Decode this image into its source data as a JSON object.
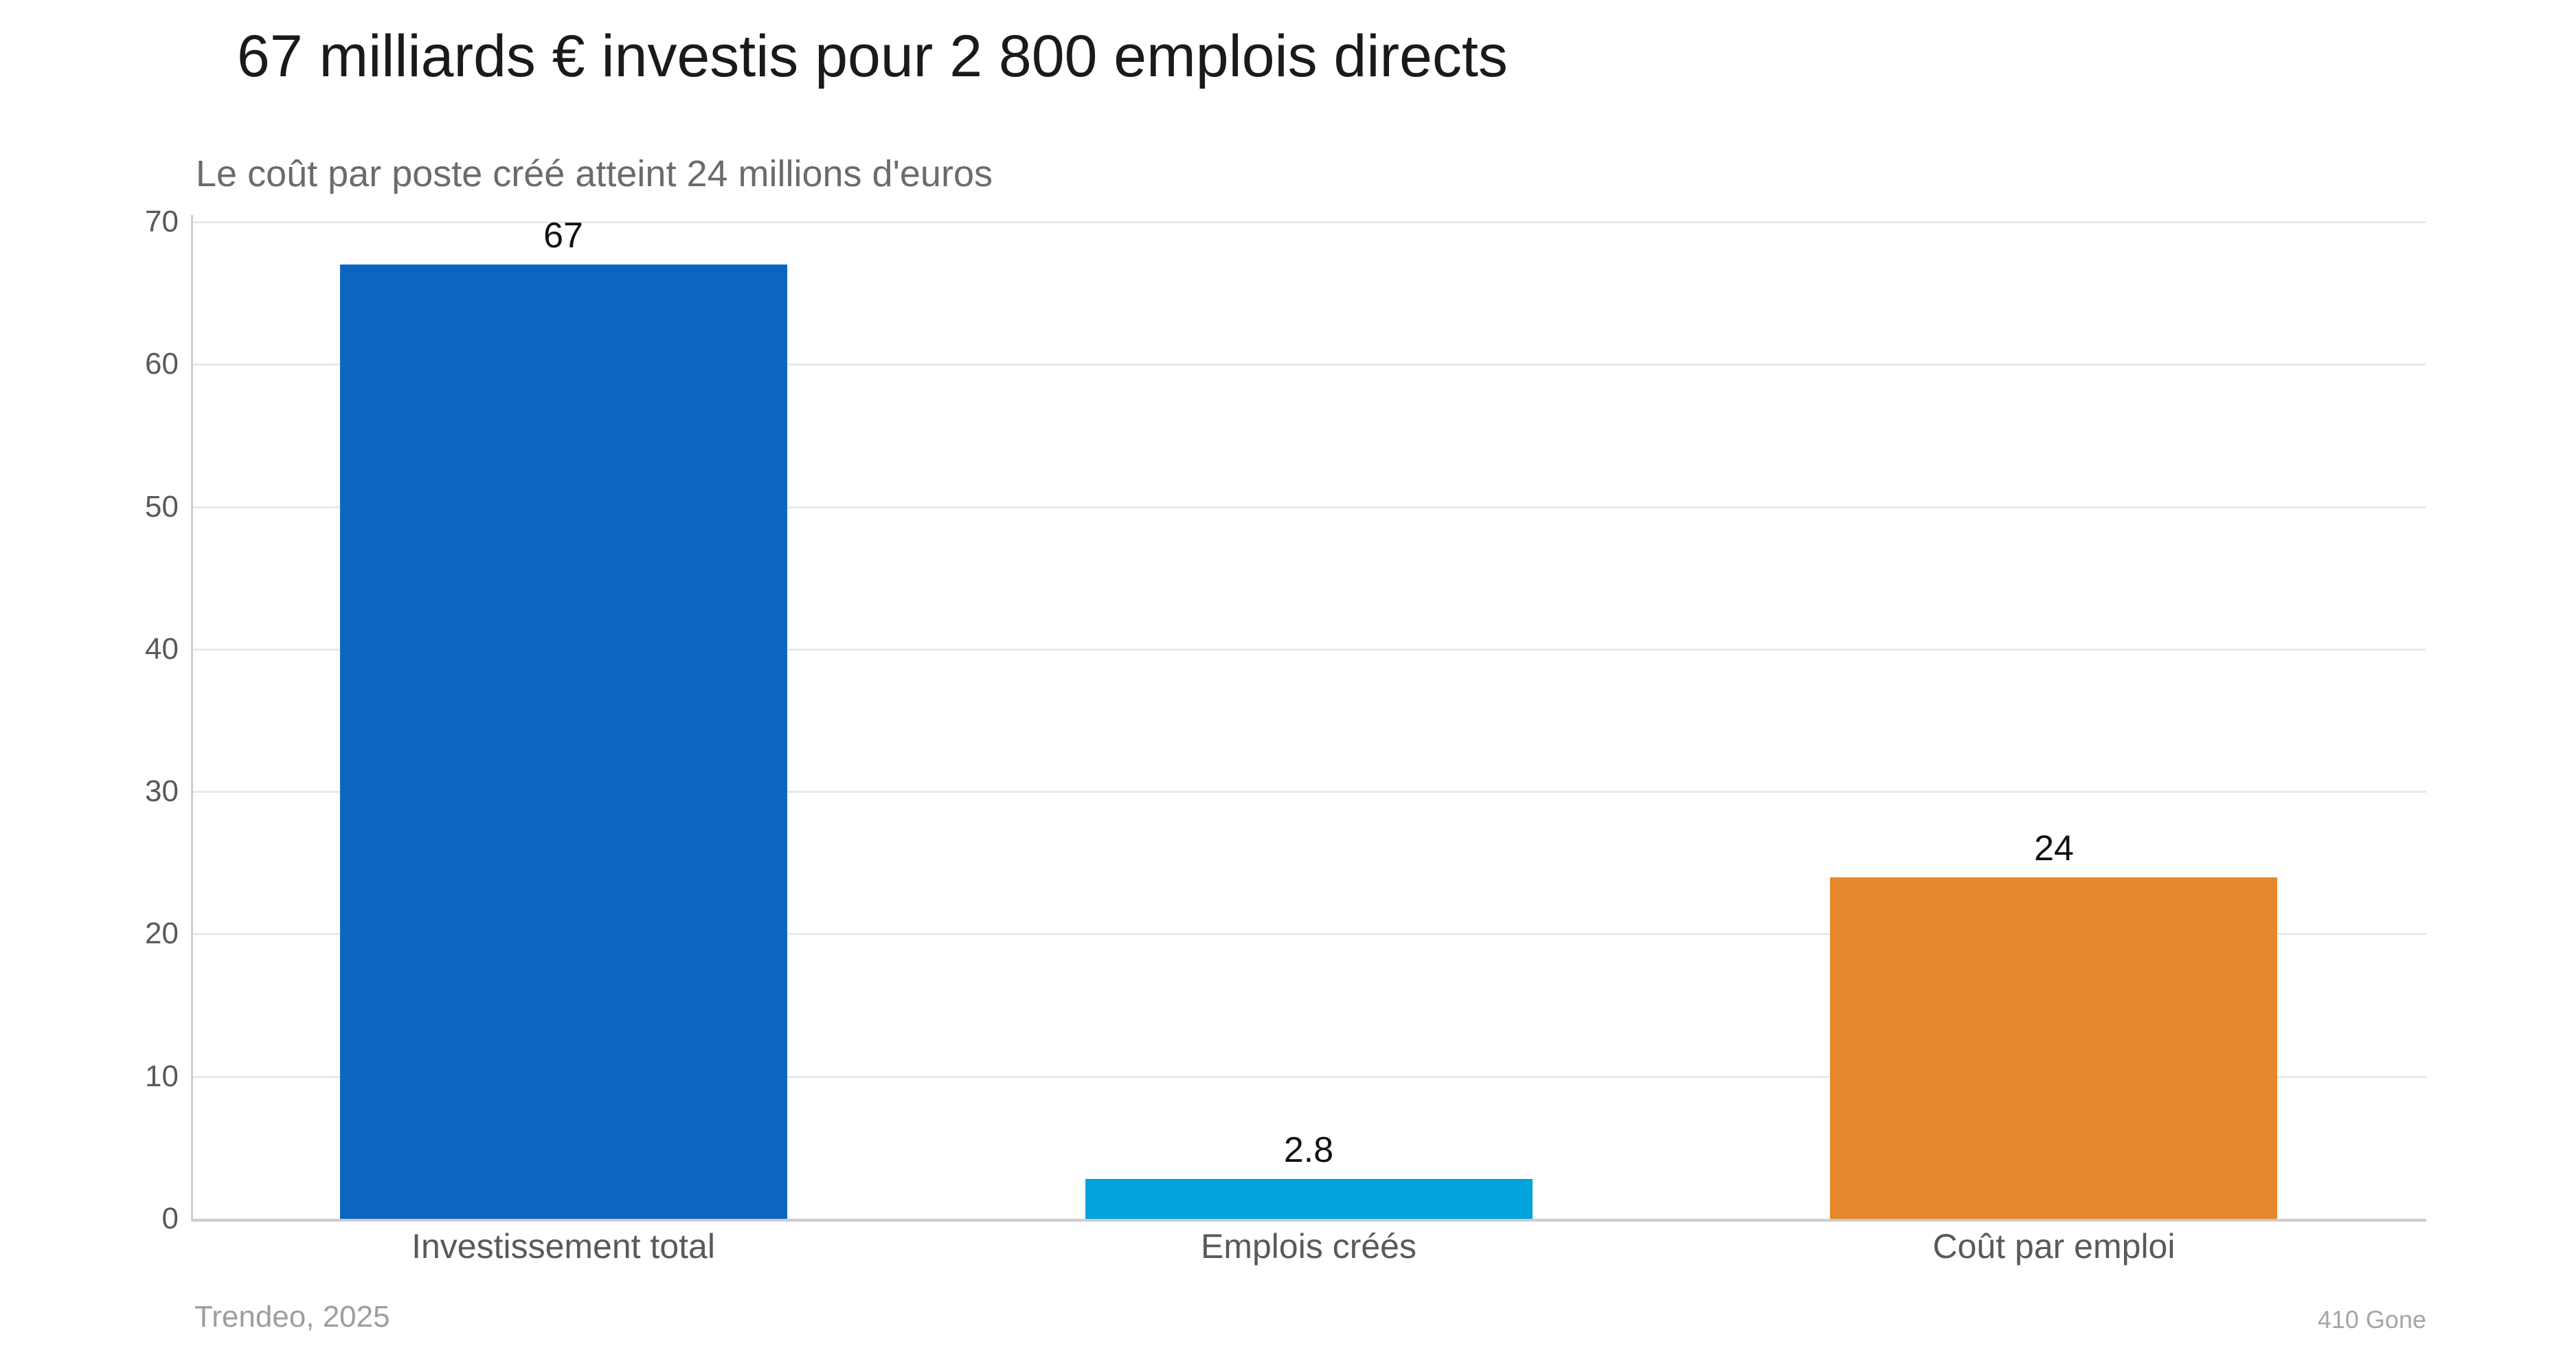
{
  "chart_data": {
    "type": "bar",
    "title": "67 milliards € investis pour 2 800 emplois directs",
    "subtitle": "Le coût par poste créé atteint 24 millions d'euros",
    "categories": [
      "Investissement total",
      "Emplois créés",
      "Coût par emploi"
    ],
    "values": [
      67,
      2.8,
      24
    ],
    "value_labels": [
      "67",
      "2.8",
      "24"
    ],
    "bar_colors": [
      "#0D65C2",
      "#00A3DC",
      "#E6872D"
    ],
    "ylim": [
      0,
      70
    ],
    "yticks": [
      0,
      10,
      20,
      30,
      40,
      50,
      60,
      70
    ],
    "grid": true,
    "legend": "none",
    "gridline_color": "#E9E9E9",
    "axis_color": "#CCCCCC",
    "source": "Trendeo, 2025",
    "watermark": "410 Gone"
  }
}
